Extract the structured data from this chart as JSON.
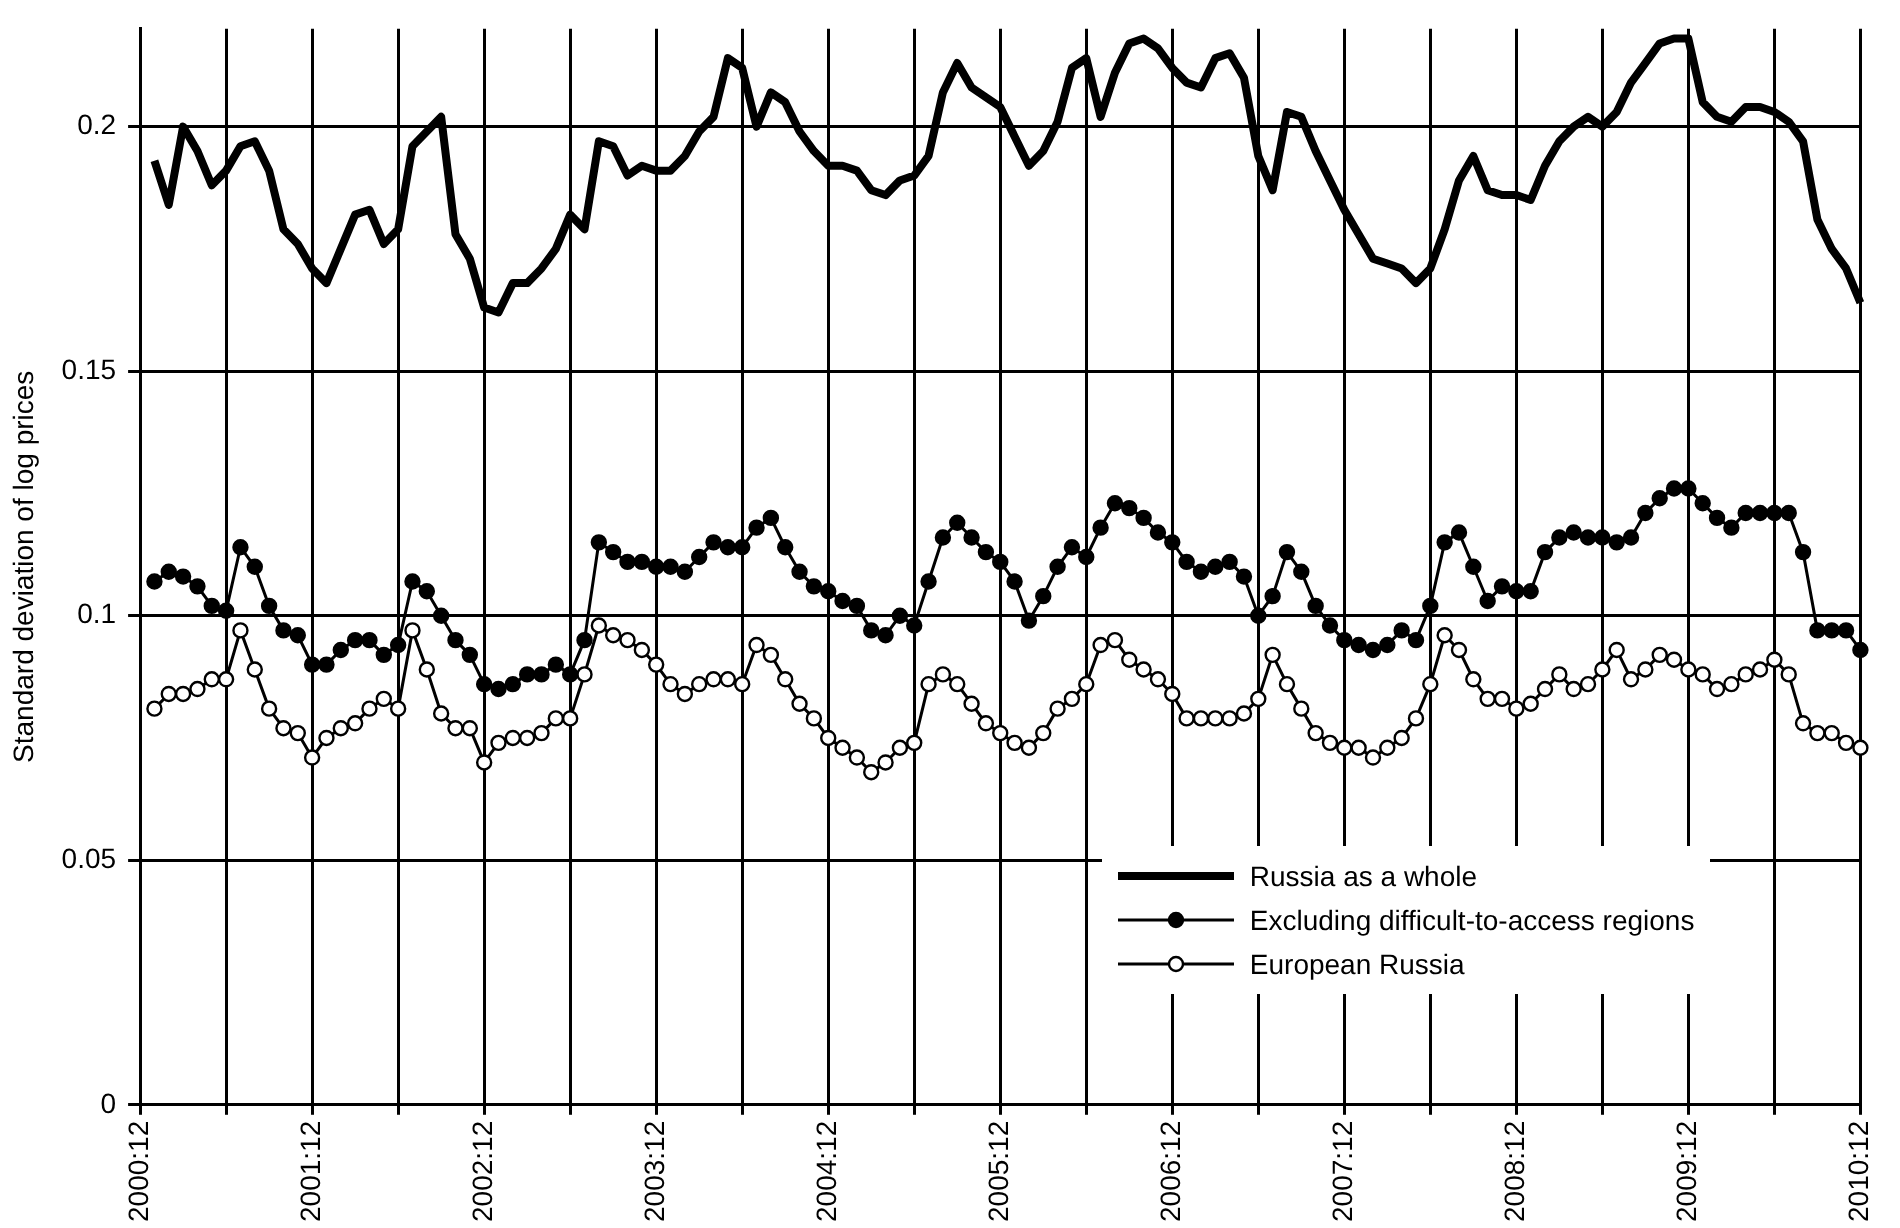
{
  "chart_data": {
    "type": "line",
    "ylabel": "Standard deviation of log prices",
    "categories": [
      "2000:12",
      null,
      null,
      null,
      null,
      null,
      null,
      null,
      null,
      null,
      null,
      null,
      "2001:12",
      null,
      null,
      null,
      null,
      null,
      null,
      null,
      null,
      null,
      null,
      null,
      "2002:12",
      null,
      null,
      null,
      null,
      null,
      null,
      null,
      null,
      null,
      null,
      null,
      "2003:12",
      null,
      null,
      null,
      null,
      null,
      null,
      null,
      null,
      null,
      null,
      null,
      "2004:12",
      null,
      null,
      null,
      null,
      null,
      null,
      null,
      null,
      null,
      null,
      null,
      "2005:12",
      null,
      null,
      null,
      null,
      null,
      null,
      null,
      null,
      null,
      null,
      null,
      "2006:12",
      null,
      null,
      null,
      null,
      null,
      null,
      null,
      null,
      null,
      null,
      null,
      "2007:12",
      null,
      null,
      null,
      null,
      null,
      null,
      null,
      null,
      null,
      null,
      null,
      "2008:12",
      null,
      null,
      null,
      null,
      null,
      null,
      null,
      null,
      null,
      null,
      null,
      "2009:12",
      null,
      null,
      null,
      null,
      null,
      null,
      null,
      null,
      null,
      null,
      null,
      "2010:12"
    ],
    "series": [
      {
        "name": "Russia as a whole",
        "color": "#000000",
        "marker": "none",
        "values": [
          null,
          0.193,
          0.184,
          0.2,
          0.195,
          0.188,
          0.191,
          0.196,
          0.197,
          0.191,
          0.179,
          0.176,
          0.171,
          0.168,
          0.175,
          0.182,
          0.183,
          0.176,
          0.179,
          0.196,
          0.199,
          0.202,
          0.178,
          0.173,
          0.163,
          0.162,
          0.168,
          0.168,
          0.171,
          0.175,
          0.182,
          0.179,
          0.197,
          0.196,
          0.19,
          0.192,
          0.191,
          0.191,
          0.194,
          0.199,
          0.202,
          0.214,
          0.212,
          0.2,
          0.207,
          0.205,
          0.199,
          0.195,
          0.192,
          0.192,
          0.191,
          0.187,
          0.186,
          0.189,
          0.19,
          0.194,
          0.207,
          0.213,
          0.208,
          0.206,
          0.204,
          0.198,
          0.192,
          0.195,
          0.201,
          0.212,
          0.214,
          0.202,
          0.211,
          0.217,
          0.218,
          0.216,
          0.212,
          0.209,
          0.208,
          0.214,
          0.215,
          0.21,
          0.194,
          0.187,
          0.203,
          0.202,
          0.195,
          0.189,
          0.183,
          0.178,
          0.173,
          0.172,
          0.171,
          0.168,
          0.171,
          0.179,
          0.189,
          0.194,
          0.187,
          0.186,
          0.186,
          0.185,
          0.192,
          0.197,
          0.2,
          0.202,
          0.2,
          0.203,
          0.209,
          0.213,
          0.217,
          0.218,
          0.218,
          0.205,
          0.202,
          0.201,
          0.204,
          0.204,
          0.203,
          0.201,
          0.197,
          0.181,
          0.175,
          0.171,
          0.164
        ]
      },
      {
        "name": "Excluding difficult-to-access regions",
        "color": "#000000",
        "marker": "circle",
        "values": [
          null,
          0.107,
          0.109,
          0.108,
          0.106,
          0.102,
          0.101,
          0.114,
          0.11,
          0.102,
          0.097,
          0.096,
          0.09,
          0.09,
          0.093,
          0.095,
          0.095,
          0.092,
          0.094,
          0.107,
          0.105,
          0.1,
          0.095,
          0.092,
          0.086,
          0.085,
          0.086,
          0.088,
          0.088,
          0.09,
          0.088,
          0.095,
          0.115,
          0.113,
          0.111,
          0.111,
          0.11,
          0.11,
          0.109,
          0.112,
          0.115,
          0.114,
          0.114,
          0.118,
          0.12,
          0.114,
          0.109,
          0.106,
          0.105,
          0.103,
          0.102,
          0.097,
          0.096,
          0.1,
          0.098,
          0.107,
          0.116,
          0.119,
          0.116,
          0.113,
          0.111,
          0.107,
          0.099,
          0.104,
          0.11,
          0.114,
          0.112,
          0.118,
          0.123,
          0.122,
          0.12,
          0.117,
          0.115,
          0.111,
          0.109,
          0.11,
          0.111,
          0.108,
          0.1,
          0.104,
          0.113,
          0.109,
          0.102,
          0.098,
          0.095,
          0.094,
          0.093,
          0.094,
          0.097,
          0.095,
          0.102,
          0.115,
          0.117,
          0.11,
          0.103,
          0.106,
          0.105,
          0.105,
          0.113,
          0.116,
          0.117,
          0.116,
          0.116,
          0.115,
          0.116,
          0.121,
          0.124,
          0.126,
          0.126,
          0.123,
          0.12,
          0.118,
          0.121,
          0.121,
          0.121,
          0.121,
          0.113,
          0.097,
          0.097,
          0.097,
          0.093
        ]
      },
      {
        "name": "European Russia",
        "color": "#000000",
        "marker": "circle",
        "values": [
          null,
          0.081,
          0.084,
          0.084,
          0.085,
          0.087,
          0.087,
          0.097,
          0.089,
          0.081,
          0.077,
          0.076,
          0.071,
          0.075,
          0.077,
          0.078,
          0.081,
          0.083,
          0.081,
          0.097,
          0.089,
          0.08,
          0.077,
          0.077,
          0.07,
          0.074,
          0.075,
          0.075,
          0.076,
          0.079,
          0.079,
          0.088,
          0.098,
          0.096,
          0.095,
          0.093,
          0.09,
          0.086,
          0.084,
          0.086,
          0.087,
          0.087,
          0.086,
          0.094,
          0.092,
          0.087,
          0.082,
          0.079,
          0.075,
          0.073,
          0.071,
          0.068,
          0.07,
          0.073,
          0.074,
          0.086,
          0.088,
          0.086,
          0.082,
          0.078,
          0.076,
          0.074,
          0.073,
          0.076,
          0.081,
          0.083,
          0.086,
          0.094,
          0.095,
          0.091,
          0.089,
          0.087,
          0.084,
          0.079,
          0.079,
          0.079,
          0.079,
          0.08,
          0.083,
          0.092,
          0.086,
          0.081,
          0.076,
          0.074,
          0.073,
          0.073,
          0.071,
          0.073,
          0.075,
          0.079,
          0.086,
          0.096,
          0.093,
          0.087,
          0.083,
          0.083,
          0.081,
          0.082,
          0.085,
          0.088,
          0.085,
          0.086,
          0.089,
          0.093,
          0.087,
          0.089,
          0.092,
          0.091,
          0.089,
          0.088,
          0.085,
          0.086,
          0.088,
          0.089,
          0.091,
          0.088,
          0.078,
          0.076,
          0.076,
          0.074,
          0.073
        ]
      }
    ],
    "ylim": [
      0,
      0.22
    ],
    "yticks": [
      0,
      0.05,
      0.1,
      0.15,
      0.2
    ],
    "grid": true,
    "legend": "bottom right"
  }
}
